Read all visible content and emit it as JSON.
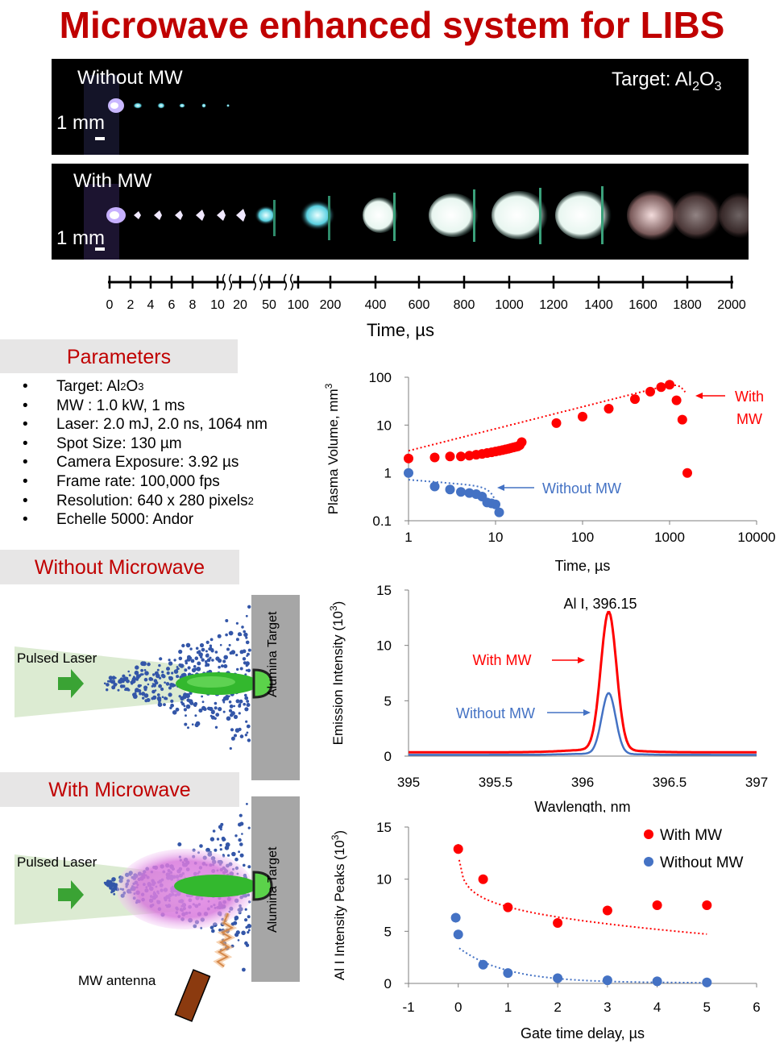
{
  "title": "Microwave enhanced system for LIBS",
  "imaging": {
    "without_label": "Without MW",
    "with_label": "With MW",
    "target_label": "Target: Al",
    "target_sub1": "2",
    "target_o": "O",
    "target_sub2": "3",
    "scale_label": "1 mm"
  },
  "timeline": {
    "ticks": [
      "0",
      "2",
      "4",
      "6",
      "8",
      "10",
      "20",
      "50",
      "100",
      "200",
      "400",
      "600",
      "800",
      "1000",
      "1200",
      "1400",
      "1600",
      "1800",
      "2000"
    ],
    "axis_label": "Time, µs"
  },
  "parameters": {
    "heading": "Parameters",
    "items": [
      {
        "text": "Target: Al",
        "sub1": "2",
        "mid": "O",
        "sub2": "3"
      },
      {
        "text": "MW : 1.0 kW, 1 ms"
      },
      {
        "text": "Laser: 2.0 mJ, 2.0 ns, 1064 nm"
      },
      {
        "text": "Spot Size: 130 µm"
      },
      {
        "text": "Camera Exposure: 3.92 µs"
      },
      {
        "text": "Frame rate: 100,000 fps"
      },
      {
        "text": "Resolution: 640 x 280 pixels",
        "sup": "2"
      },
      {
        "text": "Echelle 5000: Andor"
      }
    ]
  },
  "diagram_without": {
    "heading": "Without  Microwave",
    "laser_label": "Pulsed Laser",
    "target_label": "Alumina Target"
  },
  "diagram_with": {
    "heading": "With  Microwave",
    "laser_label": "Pulsed Laser",
    "target_label": "Alumina Target",
    "antenna_label": "MW antenna"
  },
  "colors": {
    "red": "#ff0000",
    "blue": "#4472c4",
    "title_red": "#c00000"
  },
  "chart_data": [
    {
      "type": "scatter",
      "xlabel": "Time, µs",
      "ylabel": "Plasma Volume, mm",
      "ylabel_sup": "3",
      "xscale": "log",
      "yscale": "log",
      "xlim": [
        1,
        10000
      ],
      "ylim": [
        0.1,
        100
      ],
      "xticks": [
        "1",
        "10",
        "100",
        "1000",
        "10000"
      ],
      "yticks": [
        "0.1",
        "1",
        "10",
        "100"
      ],
      "series": [
        {
          "name": "With MW",
          "color": "#ff0000",
          "x": [
            1,
            2,
            3,
            4,
            5,
            6,
            7,
            8,
            9,
            10,
            11,
            12,
            13,
            14,
            15,
            16,
            17,
            18,
            19,
            20,
            50,
            100,
            200,
            400,
            600,
            800,
            1000,
            1200,
            1400,
            1600
          ],
          "y": [
            2.0,
            2.1,
            2.2,
            2.2,
            2.3,
            2.4,
            2.5,
            2.6,
            2.7,
            2.8,
            2.9,
            3.0,
            3.1,
            3.2,
            3.3,
            3.4,
            3.5,
            3.6,
            3.8,
            4.4,
            11,
            15,
            22,
            35,
            50,
            62,
            70,
            33,
            13,
            1.0
          ]
        },
        {
          "name": "Without MW",
          "color": "#4472c4",
          "x": [
            1,
            2,
            3,
            4,
            5,
            6,
            7,
            8,
            9,
            10,
            11
          ],
          "y": [
            1.0,
            0.52,
            0.45,
            0.4,
            0.38,
            0.36,
            0.32,
            0.24,
            0.23,
            0.22,
            0.15
          ]
        }
      ],
      "annotations": [
        {
          "text_1": "With",
          "text_2": "MW"
        },
        {
          "text": "Without MW"
        }
      ]
    },
    {
      "type": "line",
      "xlabel": "Wavlength, nm",
      "ylabel": "Emission Intensity (10",
      "ylabel_sup": "3",
      "ylabel_end": ")",
      "xlim": [
        395,
        397
      ],
      "ylim": [
        0,
        15
      ],
      "xticks": [
        "395",
        "395.5",
        "396",
        "396.5",
        "397"
      ],
      "yticks": [
        "0",
        "5",
        "10",
        "15"
      ],
      "series": [
        {
          "name": "With MW",
          "color": "#ff0000",
          "peak_x": 396.15,
          "peak_y": 12.8,
          "baseline": 0.35,
          "width": 0.045
        },
        {
          "name": "Without MW",
          "color": "#4472c4",
          "peak_x": 396.15,
          "peak_y": 5.6,
          "baseline": 0.12,
          "width": 0.04
        }
      ],
      "annotations": [
        {
          "text": "Al I, 396.15"
        },
        {
          "text": "With MW"
        },
        {
          "text": "Without MW"
        }
      ]
    },
    {
      "type": "scatter",
      "xlabel": "Gate time delay, µs",
      "ylabel": "Al I Intensity Peaks (10",
      "ylabel_sup": "3",
      "ylabel_end": ")",
      "xlim": [
        -1,
        6
      ],
      "ylim": [
        0,
        15
      ],
      "xticks": [
        "-1",
        "0",
        "1",
        "2",
        "3",
        "4",
        "5",
        "6"
      ],
      "yticks": [
        "0",
        "5",
        "10",
        "15"
      ],
      "legend": "top-right",
      "series": [
        {
          "name": "With MW",
          "color": "#ff0000",
          "x": [
            0,
            0.5,
            1,
            2,
            3,
            4,
            5
          ],
          "y": [
            12.9,
            10.0,
            7.3,
            5.8,
            7.0,
            7.5,
            7.5
          ]
        },
        {
          "name": "Without MW",
          "color": "#4472c4",
          "x": [
            -0.05,
            0,
            0.5,
            1,
            2,
            3,
            4,
            5
          ],
          "y": [
            6.3,
            4.7,
            1.8,
            1.0,
            0.5,
            0.3,
            0.2,
            0.1
          ]
        }
      ]
    }
  ]
}
